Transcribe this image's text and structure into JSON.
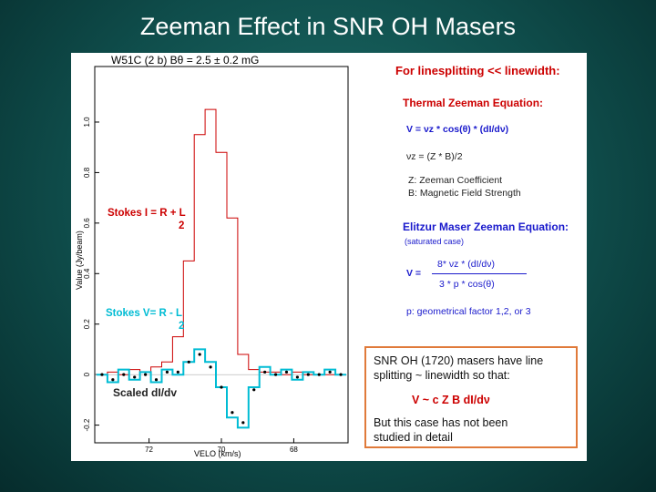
{
  "slide": {
    "title": "Zeeman Effect in SNR OH Masers",
    "colors": {
      "background": "#0f4d4b",
      "red": "#cc0000",
      "blue": "#1a1acc",
      "cyan": "#00bcd4",
      "box_border": "#e07a3a"
    }
  },
  "plot": {
    "header": "W51C (2 b)  Bθ = 2.5 ± 0.2 mG",
    "ylabel": "Value (Jy/beam)",
    "xlabel": "VELO (km/s)",
    "y_ticks": [
      "1.0",
      "0.8",
      "0.6",
      "0.4",
      "0.2",
      "0",
      "-0.2"
    ],
    "x_ticks": [
      "72",
      "70",
      "68"
    ],
    "annotations": {
      "stokes_i_top": "Stokes I = R + L",
      "stokes_i_bottom": "2",
      "stokes_v_top": "Stokes V= R - L",
      "stokes_v_bottom": "2",
      "scaled": "Scaled dI/dv"
    }
  },
  "chart_data": {
    "type": "line",
    "title": "W51C (2 b)  Bθ = 2.5 ± 0.2 mG",
    "xlabel": "VELO (km/s)",
    "ylabel": "Value (Jy/beam)",
    "x_axis": "reversed",
    "xlim": [
      73.5,
      66.5
    ],
    "ylim": [
      -0.27,
      1.22
    ],
    "x": [
      73.3,
      73.0,
      72.7,
      72.4,
      72.1,
      71.8,
      71.5,
      71.2,
      70.9,
      70.6,
      70.3,
      70.0,
      69.7,
      69.4,
      69.1,
      68.8,
      68.5,
      68.2,
      67.9,
      67.6,
      67.3,
      67.0,
      66.7
    ],
    "series": [
      {
        "name": "Stokes I = R + L",
        "color": "#cc0000",
        "values": [
          0.0,
          0.01,
          0.0,
          0.02,
          0.01,
          0.03,
          0.05,
          0.15,
          0.45,
          0.95,
          1.05,
          0.88,
          0.62,
          0.08,
          0.02,
          0.01,
          0.01,
          0.0,
          0.01,
          0.0,
          0.0,
          0.0,
          0.0
        ]
      },
      {
        "name": "Stokes V= R - L",
        "color": "#00bcd4",
        "values": [
          0.0,
          -0.03,
          0.02,
          -0.02,
          0.01,
          -0.03,
          0.02,
          0.0,
          0.05,
          0.1,
          0.05,
          -0.05,
          -0.17,
          -0.21,
          -0.05,
          0.03,
          0.0,
          0.02,
          -0.02,
          0.01,
          0.0,
          0.02,
          0.0
        ]
      },
      {
        "name": "Scaled dI/dv",
        "color": "#000000",
        "values": [
          0.0,
          -0.02,
          0.0,
          -0.01,
          0.0,
          -0.02,
          0.01,
          0.01,
          0.05,
          0.08,
          0.03,
          -0.05,
          -0.15,
          -0.19,
          -0.06,
          0.01,
          0.0,
          0.01,
          -0.01,
          0.0,
          0.0,
          0.01,
          0.0
        ]
      }
    ]
  },
  "equations": {
    "heading": "For linesplitting << linewidth:",
    "thermal_heading": "Thermal Zeeman Equation:",
    "thermal_v": "V = νz * cos(θ) * (dI/dν)",
    "thermal_nuz": "νz = (Z * B)/2",
    "z_def": "Z: Zeeman Coefficient",
    "b_def": "B: Magnetic Field Strength",
    "elitzur_heading": "Elitzur Maser Zeeman Equation:",
    "saturated": "(saturated case)",
    "elitzur_v": "V =",
    "elitzur_num": "8* νz * (dI/dν)",
    "elitzur_den": "3 * p * cos(θ)",
    "p_def": "p: geometrical factor 1,2, or 3"
  },
  "note_box": {
    "line1": "SNR OH (1720) masers have line",
    "line2": "splitting ~ linewidth so that:",
    "equation": "V ~ c Z B dI/dν",
    "line3": "But this case has not been",
    "line4": "studied in detail"
  }
}
